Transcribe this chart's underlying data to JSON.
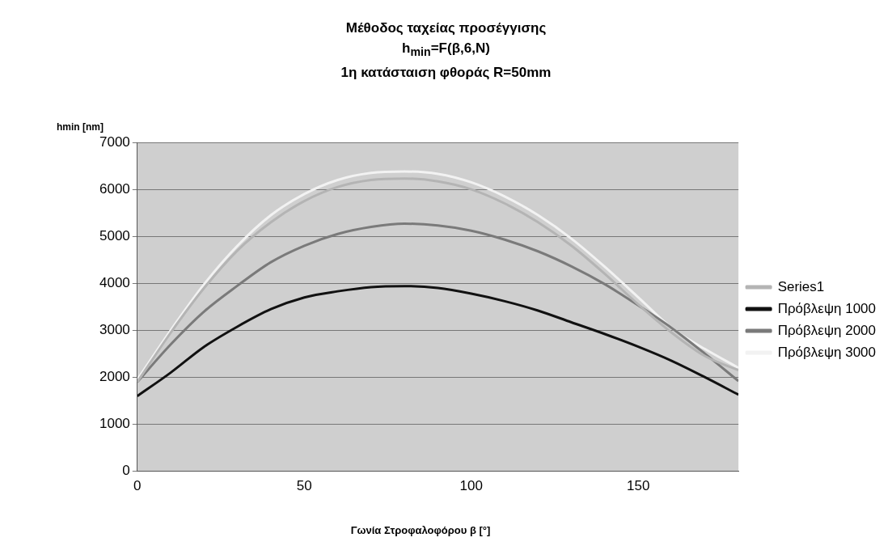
{
  "chart_data": {
    "type": "line",
    "title": "Μέθοδος ταχείας προσέγγισης\nh$_{min}$=F(β,6,N)\n1η κατάσταιση φθοράς R=50mm",
    "xlabel": "Γωνία Στροφαλοφόρου β [°]",
    "ylabel": "hmin [nm]",
    "x": [
      0,
      10,
      20,
      30,
      40,
      50,
      60,
      70,
      80,
      90,
      100,
      110,
      120,
      130,
      140,
      150,
      160,
      170,
      180
    ],
    "series": [
      {
        "name": "Series1",
        "color": "#b4b4b4",
        "values": [
          1900,
          2950,
          3900,
          4700,
          5300,
          5750,
          6050,
          6200,
          6230,
          6170,
          6000,
          5700,
          5300,
          4800,
          4200,
          3550,
          2950,
          2450,
          2150
        ]
      },
      {
        "name": "Πρόβλεψη 1000",
        "color": "#111111",
        "values": [
          1600,
          2100,
          2650,
          3080,
          3450,
          3700,
          3830,
          3920,
          3940,
          3900,
          3780,
          3620,
          3420,
          3170,
          2920,
          2650,
          2350,
          2000,
          1630
        ]
      },
      {
        "name": "Πρόβλεψη 2000",
        "color": "#7a7a7a",
        "values": [
          1900,
          2700,
          3400,
          3950,
          4450,
          4800,
          5050,
          5200,
          5270,
          5230,
          5120,
          4930,
          4680,
          4360,
          3980,
          3530,
          3050,
          2500,
          1920
        ]
      },
      {
        "name": "Πρόβλεψη 3000",
        "color": "#f2f2f2",
        "values": [
          1950,
          3000,
          3980,
          4800,
          5450,
          5900,
          6200,
          6350,
          6380,
          6330,
          6150,
          5850,
          5450,
          4950,
          4350,
          3700,
          3050,
          2600,
          2200
        ]
      }
    ],
    "xlim": [
      0,
      180
    ],
    "xticks": [
      0,
      50,
      100,
      150
    ],
    "ylim": [
      0,
      7000
    ],
    "yticks": [
      0,
      1000,
      2000,
      3000,
      4000,
      5000,
      6000,
      7000
    ],
    "grid": "y",
    "legend": "right",
    "marker": "none",
    "line_style": "solid"
  }
}
